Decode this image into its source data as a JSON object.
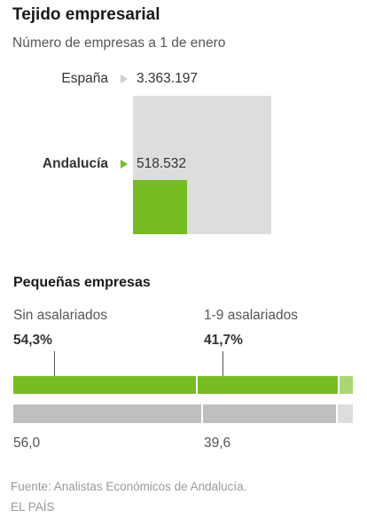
{
  "header": {
    "title": "Tejido empresarial",
    "subtitle": "Número de empresas a 1 de enero"
  },
  "colors": {
    "spain": "#dddddd",
    "andalucia": "#76bd22",
    "andalucia_light": "#a9d873",
    "spain_bar": "#bfbfbf",
    "arrow_spain": "#cfcfcf",
    "arrow_andalucia": "#76bd22"
  },
  "section": {
    "title": "Pequeñas empresas"
  },
  "footer": {
    "source": "Fuente: Analistas Económicos de Andalucía.",
    "credit": "EL PAÍS"
  },
  "chart_data": [
    {
      "type": "area",
      "series": [
        {
          "name": "España",
          "value": 3363197,
          "label": "3.363.197"
        },
        {
          "name": "Andalucía",
          "value": 518532,
          "label": "518.532"
        }
      ]
    },
    {
      "type": "bar",
      "title": "Pequeñas empresas",
      "categories": [
        "Sin asalariados",
        "1-9 asalariados"
      ],
      "series": [
        {
          "name": "Andalucía",
          "values": [
            54.3,
            41.7
          ],
          "labels": [
            "54,3%",
            "41,7%"
          ]
        },
        {
          "name": "España",
          "values": [
            56.0,
            39.6
          ],
          "labels": [
            "56,0",
            "39,6"
          ]
        }
      ]
    }
  ]
}
